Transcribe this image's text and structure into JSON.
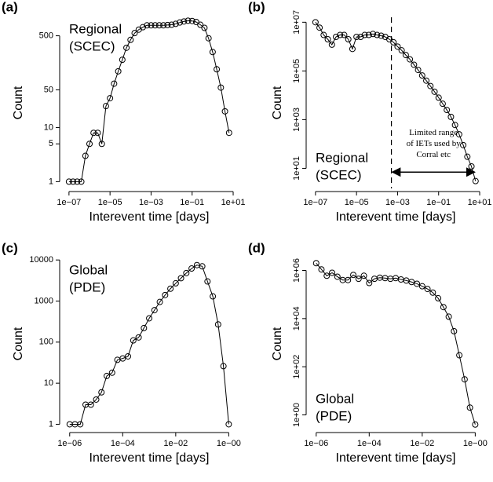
{
  "chart_data": [
    {
      "type": "line",
      "panel_label": "(a)",
      "annotation": [
        "Regional",
        "(SCEC)"
      ],
      "annotation_corner": "top-left",
      "xlabel": "Interevent time [days]",
      "ylabel": "Count",
      "log_x": true,
      "log_y": true,
      "marker": "circle",
      "color": "#000000",
      "ytick_labels_vertical": false,
      "x": [
        1e-07,
        1.58e-07,
        2.51e-07,
        3.98e-07,
        6.31e-07,
        1e-06,
        1.58e-06,
        2.51e-06,
        3.98e-06,
        6.31e-06,
        1e-05,
        1.58e-05,
        2.51e-05,
        3.98e-05,
        6.31e-05,
        0.0001,
        0.000158,
        0.000251,
        0.000398,
        0.000631,
        0.001,
        0.00158,
        0.00251,
        0.00398,
        0.00631,
        0.01,
        0.0158,
        0.0251,
        0.0398,
        0.0631,
        0.1,
        0.158,
        0.251,
        0.398,
        0.631,
        1,
        1.58,
        2.51,
        3.98,
        6.31
      ],
      "values": [
        1,
        1,
        1,
        1,
        3,
        5,
        8,
        8,
        5,
        25,
        35,
        65,
        110,
        180,
        300,
        420,
        560,
        650,
        720,
        780,
        780,
        780,
        780,
        780,
        790,
        800,
        830,
        880,
        920,
        950,
        940,
        900,
        800,
        700,
        450,
        250,
        120,
        55,
        20,
        8
      ],
      "xlim": [
        5e-08,
        13
      ],
      "ylim": [
        0.75,
        1100
      ],
      "xticks": [
        {
          "value": 1e-07,
          "label": "1e−07"
        },
        {
          "value": 1e-05,
          "label": "1e−05"
        },
        {
          "value": 0.001,
          "label": "1e−03"
        },
        {
          "value": 0.1,
          "label": "1e−01"
        },
        {
          "value": 10,
          "label": "1e+01"
        }
      ],
      "yticks": [
        1,
        5,
        10,
        50,
        500
      ]
    },
    {
      "type": "line",
      "panel_label": "(b)",
      "annotation": [
        "Regional",
        "(SCEC)"
      ],
      "annotation_corner": "bottom-left",
      "xlabel": "Interevent time [days]",
      "ylabel": "Count",
      "log_x": true,
      "log_y": true,
      "marker": "circle",
      "color": "#000000",
      "ytick_labels_vertical": true,
      "x": [
        1e-07,
        1.58e-07,
        2.51e-07,
        3.98e-07,
        6.31e-07,
        1e-06,
        1.58e-06,
        2.51e-06,
        3.98e-06,
        6.31e-06,
        1e-05,
        1.58e-05,
        2.51e-05,
        3.98e-05,
        6.31e-05,
        0.0001,
        0.000158,
        0.000251,
        0.000398,
        0.000631,
        0.001,
        0.00158,
        0.00251,
        0.00398,
        0.00631,
        0.01,
        0.0158,
        0.0251,
        0.0398,
        0.0631,
        0.1,
        0.158,
        0.251,
        0.398,
        0.631,
        1,
        1.58,
        2.51,
        3.98,
        6.31
      ],
      "values": [
        10000000.0,
        6000000.0,
        3000000.0,
        2000000.0,
        1200000.0,
        2500000.0,
        3000000.0,
        3000000.0,
        2000000.0,
        800000.0,
        2500000.0,
        2500000.0,
        3000000.0,
        3000000.0,
        3300000.0,
        3000000.0,
        2800000.0,
        2500000.0,
        2000000.0,
        1500000.0,
        1000000.0,
        700000.0,
        450000.0,
        300000.0,
        180000.0,
        110000.0,
        65000.0,
        40000.0,
        24000.0,
        14000.0,
        8000.0,
        4500.0,
        2500.0,
        1300.0,
        600,
        250,
        90,
        30,
        12,
        3
      ],
      "xlim": [
        5e-08,
        13
      ],
      "ylim": [
        1.5,
        16000000.0
      ],
      "xticks": [
        {
          "value": 1e-07,
          "label": "1e−07"
        },
        {
          "value": 1e-05,
          "label": "1e−05"
        },
        {
          "value": 0.001,
          "label": "1e−03"
        },
        {
          "value": 0.1,
          "label": "1e−01"
        },
        {
          "value": 10,
          "label": "1e+01"
        }
      ],
      "yticks": [
        {
          "value": 10,
          "label": "1e+01"
        },
        {
          "value": 1000,
          "label": "1e+03"
        },
        {
          "value": 100000,
          "label": "1e+05"
        },
        {
          "value": 10000000,
          "label": "1e+07"
        }
      ],
      "vline": 0.0005,
      "arrow": {
        "x": [
          0.0005,
          6.31
        ],
        "y": 7
      },
      "note": [
        "Limited range",
        "of IETs used by",
        "Corral etc"
      ]
    },
    {
      "type": "line",
      "panel_label": "(c)",
      "annotation": [
        "Global",
        "(PDE)"
      ],
      "annotation_corner": "top-left",
      "xlabel": "Interevent time [days]",
      "ylabel": "Count",
      "log_x": true,
      "log_y": true,
      "marker": "circle",
      "color": "#000000",
      "ytick_labels_vertical": false,
      "x": [
        1e-06,
        1.58e-06,
        2.51e-06,
        3.98e-06,
        6.31e-06,
        1e-05,
        1.58e-05,
        2.51e-05,
        3.98e-05,
        6.31e-05,
        0.0001,
        0.000158,
        0.000251,
        0.000398,
        0.000631,
        0.001,
        0.00158,
        0.00251,
        0.00398,
        0.00631,
        0.01,
        0.0158,
        0.0251,
        0.0398,
        0.0631,
        0.1,
        0.158,
        0.251,
        0.398,
        0.631,
        1
      ],
      "values": [
        1,
        1,
        1,
        3,
        3,
        4,
        6,
        15,
        18,
        37,
        40,
        45,
        110,
        130,
        220,
        380,
        600,
        950,
        1400,
        2000,
        2700,
        3600,
        4800,
        6200,
        7500,
        7000,
        3000,
        1300,
        270,
        26,
        1
      ],
      "xlim": [
        5.5e-07,
        1.8
      ],
      "ylim": [
        0.75,
        11000
      ],
      "xticks": [
        {
          "value": 1e-06,
          "label": "1e−06"
        },
        {
          "value": 0.0001,
          "label": "1e−04"
        },
        {
          "value": 0.01,
          "label": "1e−02"
        },
        {
          "value": 1,
          "label": "1e−00"
        }
      ],
      "yticks": [
        1,
        10,
        100,
        1000,
        10000
      ]
    },
    {
      "type": "line",
      "panel_label": "(d)",
      "annotation": [
        "Global",
        "(PDE)"
      ],
      "annotation_corner": "bottom-left",
      "xlabel": "Interevent time [days]",
      "ylabel": "Count",
      "log_x": true,
      "log_y": true,
      "marker": "circle",
      "color": "#000000",
      "ytick_labels_vertical": true,
      "x": [
        1e-06,
        1.58e-06,
        2.51e-06,
        3.98e-06,
        6.31e-06,
        1e-05,
        1.58e-05,
        2.51e-05,
        3.98e-05,
        6.31e-05,
        0.0001,
        0.000158,
        0.000251,
        0.000398,
        0.000631,
        0.001,
        0.00158,
        0.00251,
        0.00398,
        0.00631,
        0.01,
        0.0158,
        0.0251,
        0.0398,
        0.0631,
        0.1,
        0.158,
        0.251,
        0.398,
        0.631,
        1
      ],
      "values": [
        2000000.0,
        1100000.0,
        600000.0,
        800000.0,
        550000.0,
        400000.0,
        400000.0,
        650000.0,
        450000.0,
        600000.0,
        300000.0,
        450000.0,
        500000.0,
        480000.0,
        450000.0,
        480000.0,
        420000.0,
        380000.0,
        330000.0,
        280000.0,
        220000.0,
        170000.0,
        120000.0,
        70000.0,
        30000.0,
        12000.0,
        3000.0,
        300,
        30,
        2,
        0.4
      ],
      "xlim": [
        5.5e-07,
        1.8
      ],
      "ylim": [
        0.25,
        3200000.0
      ],
      "xticks": [
        {
          "value": 1e-06,
          "label": "1e−06"
        },
        {
          "value": 0.0001,
          "label": "1e−04"
        },
        {
          "value": 0.01,
          "label": "1e−02"
        },
        {
          "value": 1,
          "label": "1e−00"
        }
      ],
      "yticks": [
        {
          "value": 1,
          "label": "1e+00"
        },
        {
          "value": 100,
          "label": "1e+02"
        },
        {
          "value": 10000,
          "label": "1e+04"
        },
        {
          "value": 1000000,
          "label": "1e+06"
        }
      ]
    }
  ]
}
